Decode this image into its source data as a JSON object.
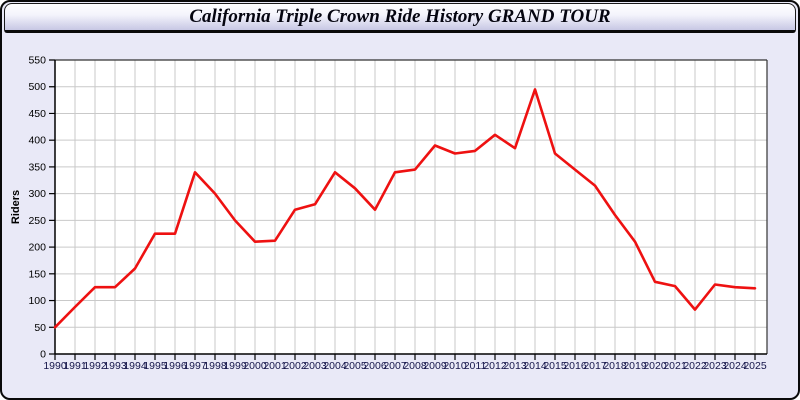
{
  "header": {
    "title": "California Triple Crown Ride History GRAND TOUR"
  },
  "colors": {
    "line": "#ee1111",
    "panel_bg": "#e9e9f7",
    "plot_bg": "#ffffff",
    "grid": "#c9c9c9",
    "axis": "#000000",
    "plot_border": "#333333",
    "x_label": "#15154a",
    "y_label": "#000000"
  },
  "chart_data": {
    "type": "line",
    "title": "California Triple Crown Ride History GRAND TOUR",
    "xlabel": "",
    "ylabel": "Riders",
    "x": [
      1990,
      1991,
      1992,
      1993,
      1994,
      1995,
      1996,
      1997,
      1998,
      1999,
      2000,
      2001,
      2002,
      2003,
      2004,
      2005,
      2006,
      2007,
      2008,
      2009,
      2010,
      2011,
      2012,
      2013,
      2014,
      2015,
      2016,
      2017,
      2018,
      2019,
      2020,
      2021,
      2022,
      2023,
      2024,
      2025
    ],
    "series": [
      {
        "name": "Riders",
        "color": "#ee1111",
        "values": [
          50,
          88,
          125,
          125,
          160,
          225,
          225,
          340,
          300,
          250,
          210,
          212,
          270,
          280,
          340,
          310,
          270,
          340,
          345,
          390,
          375,
          380,
          410,
          385,
          495,
          375,
          345,
          315,
          260,
          210,
          135,
          127,
          83,
          130,
          125,
          123
        ]
      }
    ],
    "ylim": [
      0,
      550
    ],
    "ytick_step": 50,
    "grid": true,
    "legend": false
  }
}
